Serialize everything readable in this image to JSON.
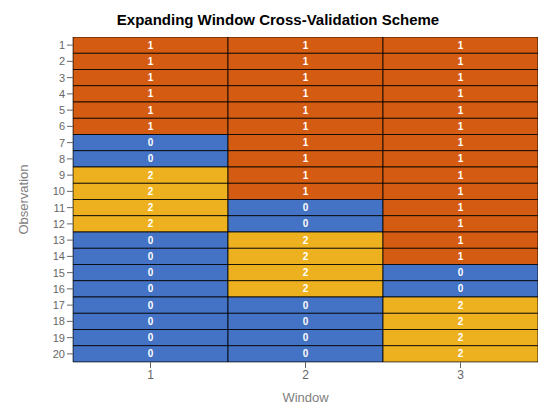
{
  "chart_data": {
    "type": "heatmap",
    "title": "Expanding Window Cross-Validation Scheme",
    "xlabel": "Window",
    "ylabel": "Observation",
    "x": [
      "1",
      "2",
      "3"
    ],
    "y": [
      "1",
      "2",
      "3",
      "4",
      "5",
      "6",
      "7",
      "8",
      "9",
      "10",
      "11",
      "12",
      "13",
      "14",
      "15",
      "16",
      "17",
      "18",
      "19",
      "20"
    ],
    "cells": [
      [
        1,
        1,
        1
      ],
      [
        1,
        1,
        1
      ],
      [
        1,
        1,
        1
      ],
      [
        1,
        1,
        1
      ],
      [
        1,
        1,
        1
      ],
      [
        1,
        1,
        1
      ],
      [
        0,
        1,
        1
      ],
      [
        0,
        1,
        1
      ],
      [
        2,
        1,
        1
      ],
      [
        2,
        1,
        1
      ],
      [
        2,
        0,
        1
      ],
      [
        2,
        0,
        1
      ],
      [
        0,
        2,
        1
      ],
      [
        0,
        2,
        1
      ],
      [
        0,
        2,
        0
      ],
      [
        0,
        2,
        0
      ],
      [
        0,
        0,
        2
      ],
      [
        0,
        0,
        2
      ],
      [
        0,
        0,
        2
      ],
      [
        0,
        0,
        2
      ]
    ],
    "colors": [
      "#4472C4",
      "#D45B12",
      "#EDB120"
    ],
    "data_labels": true
  }
}
